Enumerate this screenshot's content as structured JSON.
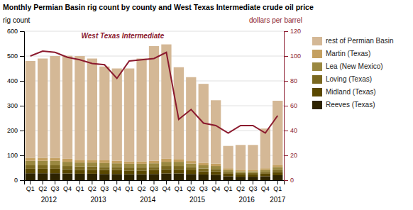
{
  "chart_data": {
    "type": "bar",
    "title": "Monthly Permian Basin rig count by county and West Texas Intermediate crude oil price",
    "ylabel": "rig count",
    "y2label": "dollars per barrel",
    "categories": [
      "Q1",
      "Q2",
      "Q3",
      "Q4",
      "Q1",
      "Q2",
      "Q3",
      "Q4",
      "Q1",
      "Q2",
      "Q3",
      "Q4",
      "Q1",
      "Q2",
      "Q3",
      "Q4",
      "Q1",
      "Q2",
      "Q3",
      "Q4",
      "Q1"
    ],
    "annotations": [
      "2012",
      "2013",
      "2014",
      "2015",
      "2016",
      "2017"
    ],
    "stacked": true,
    "grid": true,
    "legend": "right",
    "series": [
      {
        "name": "Reeves (Texas)",
        "color": "#2d2300",
        "values": [
          28,
          28,
          28,
          27,
          26,
          26,
          25,
          25,
          24,
          24,
          25,
          27,
          27,
          25,
          23,
          22,
          16,
          14,
          14,
          16,
          20
        ]
      },
      {
        "name": "Midland (Texas)",
        "color": "#5a4800",
        "values": [
          18,
          18,
          18,
          17,
          16,
          16,
          16,
          16,
          15,
          15,
          16,
          17,
          17,
          15,
          13,
          13,
          10,
          9,
          9,
          10,
          13
        ]
      },
      {
        "name": "Loving (Texas)",
        "color": "#7a6820",
        "values": [
          14,
          14,
          14,
          13,
          13,
          13,
          12,
          12,
          12,
          12,
          12,
          13,
          13,
          12,
          11,
          10,
          7,
          6,
          6,
          7,
          9
        ]
      },
      {
        "name": "Lea (New Mexico)",
        "color": "#9a8840",
        "values": [
          18,
          18,
          18,
          17,
          16,
          16,
          16,
          15,
          15,
          15,
          15,
          17,
          17,
          15,
          13,
          12,
          8,
          7,
          7,
          8,
          11
        ]
      },
      {
        "name": "Martin (Texas)",
        "color": "#c4a060",
        "values": [
          12,
          12,
          12,
          12,
          11,
          11,
          11,
          10,
          10,
          10,
          10,
          12,
          11,
          10,
          10,
          10,
          7,
          6,
          6,
          7,
          9
        ]
      },
      {
        "name": "rest of Permian Basin",
        "color": "#d4b896",
        "values": [
          390,
          400,
          410,
          415,
          418,
          408,
          378,
          372,
          374,
          414,
          462,
          461,
          370,
          338,
          318,
          255,
          90,
          100,
          100,
          160,
          258
        ]
      },
      {
        "name": "West Texas Intermediate",
        "type": "line",
        "axis": "y2",
        "color": "#8b1a2e",
        "values": [
          100,
          104,
          103,
          99,
          97,
          94,
          93,
          82,
          96,
          97,
          98,
          103,
          49,
          57,
          46,
          44,
          38,
          44,
          44,
          38,
          52
        ]
      }
    ],
    "ylim": [
      0,
      600
    ],
    "yticks": [
      0,
      100,
      200,
      300,
      400,
      500,
      600
    ],
    "y2lim": [
      0,
      120
    ],
    "y2ticks": [
      0,
      20,
      40,
      60,
      80,
      100,
      120
    ]
  }
}
